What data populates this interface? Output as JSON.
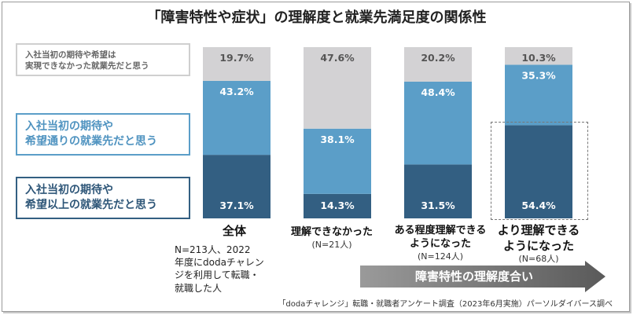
{
  "title": "「障害特性や症状」の理解度と就業先満足度の関係性",
  "legend": [
    {
      "line1": "入社当初の期待や希望は",
      "line2": "実現できなかった就業先だと思う",
      "color": "#d3d2d4"
    },
    {
      "line1": "入社当初の期待や",
      "line2": "希望通りの就業先だと思う",
      "color": "#5b9ec8"
    },
    {
      "line1": "入社当初の期待や",
      "line2": "希望以上の就業先だと思う",
      "color": "#335f82"
    }
  ],
  "chart_data": {
    "type": "bar",
    "stacked": true,
    "unit": "%",
    "categories": [
      "全体",
      "理解できなかった",
      "ある程度理解できるようになった",
      "より理解できるようになった"
    ],
    "category_n": [
      "N=213人、2022",
      "(N=21人)",
      "(N=124人)",
      "(N=68人)"
    ],
    "series": [
      {
        "name": "入社当初の期待や希望以上の就業先だと思う",
        "values": [
          37.1,
          14.3,
          31.5,
          54.4
        ],
        "labels": [
          "37.1%",
          "14.3%",
          "31.5%",
          "54.4%"
        ],
        "color": "#335f82"
      },
      {
        "name": "入社当初の期待や希望通りの就業先だと思う",
        "values": [
          43.2,
          38.1,
          48.4,
          35.3
        ],
        "labels": [
          "43.2%",
          "38.1%",
          "48.4%",
          "35.3%"
        ],
        "color": "#5b9ec8"
      },
      {
        "name": "入社当初の期待や希望は実現できなかった就業先だと思う",
        "values": [
          19.7,
          47.6,
          20.2,
          10.3
        ],
        "labels": [
          "19.7%",
          "47.6%",
          "20.2%",
          "10.3%"
        ],
        "color": "#d3d2d4"
      }
    ],
    "ylim": [
      0,
      100
    ],
    "grid": false
  },
  "categories_display": {
    "c0": "全体",
    "c1": "理解できなかった",
    "c2a": "ある程度理解できる",
    "c2b": "ようになった",
    "c3a": "より理解できる",
    "c3b": "ようになった"
  },
  "note_lines": [
    "N=213人、2022",
    "年度にdodaチャレン",
    "ジを利用して転職・",
    "就職した人"
  ],
  "arrow_label": "障害特性の理解度合い",
  "source": "「dodaチャレンジ」転職・就職者アンケート調査（2023年6月実施）パーソルダイバース調べ"
}
